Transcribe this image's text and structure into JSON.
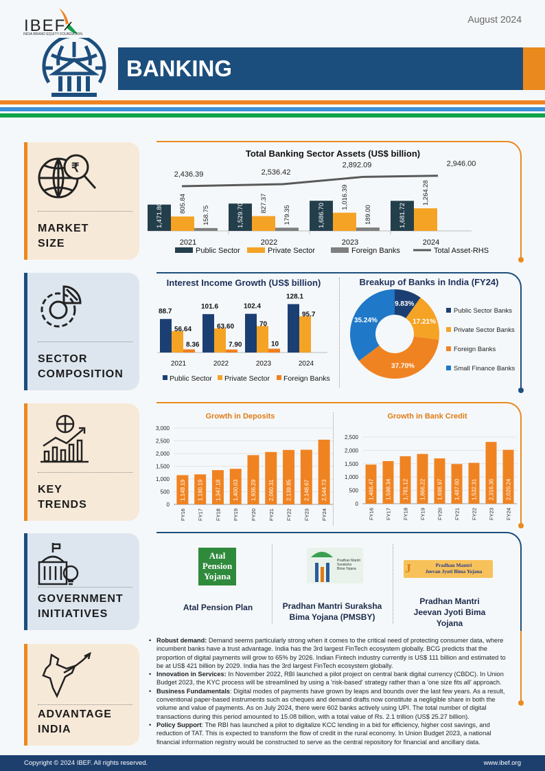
{
  "header": {
    "logo_text": "IBEF",
    "logo_subtext": "INDIA BRAND EQUITY FOUNDATION",
    "date": "August 2024",
    "title": "BANKING"
  },
  "colors": {
    "navy": "#1c4e7d",
    "orange": "#ea8a1e",
    "dark_teal": "#243f4c",
    "amber": "#f5a324",
    "gray": "#7f7f7f",
    "peach": "#f7e9d8",
    "light_blue": "#dde6ef",
    "green": "#0fa34a",
    "sky": "#3b8fd6"
  },
  "sections": {
    "market": "MARKET SIZE",
    "sector": "SECTOR COMPOSITION",
    "trends": "KEY TRENDS",
    "govt": "GOVERNMENT INITIATIVES",
    "advantage": "ADVANTAGE INDIA"
  },
  "section_lines": {
    "market": [
      "MARKET",
      "SIZE"
    ],
    "sector": [
      "SECTOR",
      "COMPOSITION"
    ],
    "trends": [
      "KEY",
      "TRENDS"
    ],
    "govt": [
      "GOVERNMENT",
      "INITIATIVES"
    ],
    "advantage": [
      "ADVANTAGE",
      "INDIA"
    ]
  },
  "chart_data": [
    {
      "type": "bar",
      "title": "Total Banking Sector Assets (US$ billion)",
      "categories": [
        "2021",
        "2022",
        "2023",
        "2024"
      ],
      "series": [
        {
          "name": "Public Sector",
          "values": [
            1471.8,
            1529.7,
            1686.7,
            1681.72
          ],
          "labels": [
            "1,471.80",
            "1,529.70",
            "1,686.70",
            "1,681.72"
          ],
          "color": "#243f4c"
        },
        {
          "name": "Private Sector",
          "values": [
            805.84,
            827.37,
            1016.39,
            1264.28
          ],
          "labels": [
            "805.84",
            "827.37",
            "1,016.39",
            "1,264.28"
          ],
          "color": "#f5a324"
        },
        {
          "name": "Foreign Banks",
          "values": [
            158.75,
            179.35,
            189.0,
            null
          ],
          "labels": [
            "158.75",
            "179.35",
            "189.00",
            ""
          ],
          "color": "#7f7f7f"
        },
        {
          "name": "Total Asset-RHS",
          "type": "line",
          "values": [
            2436.39,
            2536.42,
            2892.09,
            2946.0
          ],
          "labels": [
            "2,436.39",
            "2,536.42",
            "2,892.09",
            "2,946.00"
          ],
          "color": "#595959"
        }
      ]
    },
    {
      "type": "bar",
      "title": "Interest Income Growth (US$ billion)",
      "categories": [
        "2021",
        "2022",
        "2023",
        "2024"
      ],
      "series": [
        {
          "name": "Public Sector",
          "values": [
            88.7,
            101.6,
            102.4,
            128.1
          ],
          "labels": [
            "88.7",
            "101.6",
            "102.4",
            "128.1"
          ],
          "color": "#1c3f73"
        },
        {
          "name": "Private Sector",
          "values": [
            56.64,
            63.6,
            70,
            95.7
          ],
          "labels": [
            "56.64",
            "63.60",
            "70",
            "95.7"
          ],
          "color": "#f5a324"
        },
        {
          "name": "Foreign Banks",
          "values": [
            8.36,
            7.9,
            10,
            null
          ],
          "labels": [
            "8.36",
            "7.90",
            "10",
            ""
          ],
          "color": "#f07f1e"
        }
      ]
    },
    {
      "type": "pie",
      "title": "Breakup of Banks in India (FY24)",
      "donut": true,
      "slices": [
        {
          "name": "Public Sector Banks",
          "value": 9.83,
          "label": "9.83%",
          "color": "#1c3f73"
        },
        {
          "name": "Private Sector Banks",
          "value": 17.21,
          "label": "17.21%",
          "color": "#f5a324"
        },
        {
          "name": "Foreign Banks",
          "value": 37.7,
          "label": "37.70%",
          "color": "#f08321"
        },
        {
          "name": "Small Finance Banks",
          "value": 35.24,
          "label": "35.24%",
          "color": "#1f78c8"
        }
      ]
    },
    {
      "type": "bar",
      "title": "Growth in Deposits",
      "categories": [
        "FY16",
        "FY17",
        "FY18",
        "FY19",
        "FY20",
        "FY21",
        "FY22",
        "FY23",
        "FY24"
      ],
      "values": [
        1149.19,
        1180.19,
        1347.18,
        1400.03,
        1936.29,
        2060.31,
        2139.85,
        2148.67,
        2544.73
      ],
      "labels": [
        "1,149.19",
        "1,180.19",
        "1,347.18",
        "1,400.03",
        "1,936.29",
        "2,060.31",
        "2,139.85",
        "2,148.67",
        "2,544.73"
      ],
      "ylim": [
        0,
        3000
      ],
      "yticks": [
        "0",
        "500",
        "1,000",
        "1,500",
        "2,000",
        "2,500",
        "3,000"
      ],
      "color": "#f08321",
      "grid": true
    },
    {
      "type": "bar",
      "title": "Growth in Bank Credit",
      "categories": [
        "FY16",
        "FY17",
        "FY18",
        "FY19",
        "FY20",
        "FY21",
        "FY22",
        "FY23",
        "FY24"
      ],
      "values": [
        1466.47,
        1598.34,
        1781.12,
        1866.22,
        1698.97,
        1487.6,
        1532.31,
        2316.36,
        2020.24
      ],
      "labels": [
        "1,466.47",
        "1,598.34",
        "1,781.12",
        "1,866.22",
        "1,698.97",
        "1,487.60",
        "1,532.31",
        "2,316.36",
        "2,020.24"
      ],
      "ylim": [
        0,
        2500
      ],
      "yticks": [
        "0",
        "500",
        "1,000",
        "1,500",
        "2,000",
        "2,500"
      ],
      "color": "#f08321",
      "grid": true
    }
  ],
  "government": [
    {
      "logo_lines": [
        "Atal",
        "Pension",
        "Yojana"
      ],
      "name": "Atal Pension Plan"
    },
    {
      "logo_lines": [
        "Pradhan Mantri",
        "Suraksha",
        "Bima Yojana"
      ],
      "name": "Pradhan Mantri Suraksha Bima Yojana (PMSBY)"
    },
    {
      "logo_lines": [
        "Pradhan Mantri",
        "Jeevan Jyoti Bima Yojana"
      ],
      "name": "Pradhan Mantri Jeevan Jyoti Bima Yojana"
    }
  ],
  "advantage": [
    {
      "title": "Robust demand:",
      "text": " Demand seems particularly strong when it comes to the critical need of protecting consumer data, where incumbent banks have a trust advantage. India has the 3rd largest FinTech ecosystem globally. BCG predicts that the proportion of digital payments will grow to 65% by 2026. Indian Fintech industry currently is US$ 111 billion and estimated to be at US$ 421 billion by 2029. India has the 3rd largest FinTech ecosystem globally."
    },
    {
      "title": "Innovation in Services:",
      "text": " In November 2022, RBI launched a pilot project on central bank digital currency (CBDC). In Union Budget 2023, the KYC process will be streamlined by using a 'risk-based' strategy rather than a 'one size fits all' approach."
    },
    {
      "title": "Business Fundamentals",
      "text": ": Digital modes of payments have grown by leaps and bounds over the last few years. As a result, conventional paper-based instruments such as cheques and demand drafts now constitute a negligible share in both the volume and value of payments. As on July 2024, there were 602 banks actively using UPI. The total number of digital transactions during this period amounted to 15.08 billion, with a total value of Rs. 2.1 trillion (US$ 25.27 billion)."
    },
    {
      "title": "Policy Support",
      "text": ": The RBI has launched a pilot to digitalize KCC lending in a bid for efficiency, higher cost savings, and reduction of TAT. This is expected to transform the flow of credit in the rural economy. In Union Budget 2023, a national financial information registry would be constructed to serve as the central repository for financial and ancillary data."
    }
  ],
  "footer": {
    "copyright": "Copyright © 2024 IBEF. All rights reserved.",
    "website": "www.ibef.org"
  }
}
